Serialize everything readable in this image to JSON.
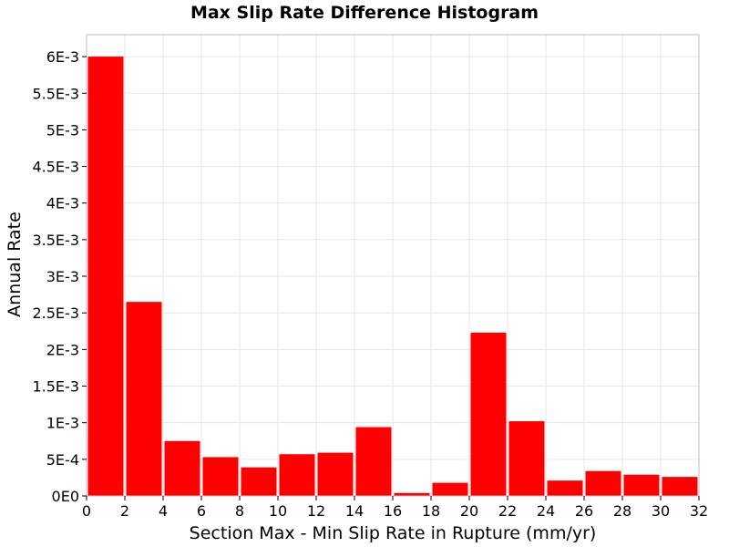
{
  "chart_data": {
    "type": "bar",
    "title": "Max Slip Rate Difference Histogram",
    "xlabel": "Section Max - Min Slip Rate in Rupture (mm/yr)",
    "ylabel": "Annual Rate",
    "xlim": [
      0,
      32
    ],
    "ylim": [
      0,
      0.0063
    ],
    "bin_width": 2,
    "bins": [
      {
        "x0": 0,
        "x1": 2,
        "value": 0.006
      },
      {
        "x0": 2,
        "x1": 4,
        "value": 0.00265
      },
      {
        "x0": 4,
        "x1": 6,
        "value": 0.00075
      },
      {
        "x0": 6,
        "x1": 8,
        "value": 0.00053
      },
      {
        "x0": 8,
        "x1": 10,
        "value": 0.00039
      },
      {
        "x0": 10,
        "x1": 12,
        "value": 0.00057
      },
      {
        "x0": 12,
        "x1": 14,
        "value": 0.00059
      },
      {
        "x0": 14,
        "x1": 16,
        "value": 0.00094
      },
      {
        "x0": 16,
        "x1": 18,
        "value": 4e-05
      },
      {
        "x0": 18,
        "x1": 20,
        "value": 0.00018
      },
      {
        "x0": 20,
        "x1": 22,
        "value": 0.00223
      },
      {
        "x0": 22,
        "x1": 24,
        "value": 0.00102
      },
      {
        "x0": 24,
        "x1": 26,
        "value": 0.00021
      },
      {
        "x0": 26,
        "x1": 28,
        "value": 0.00034
      },
      {
        "x0": 28,
        "x1": 30,
        "value": 0.00029
      },
      {
        "x0": 30,
        "x1": 32,
        "value": 0.00026
      }
    ],
    "x_ticks": [
      {
        "value": 0,
        "label": "0"
      },
      {
        "value": 2,
        "label": "2"
      },
      {
        "value": 4,
        "label": "4"
      },
      {
        "value": 6,
        "label": "6"
      },
      {
        "value": 8,
        "label": "8"
      },
      {
        "value": 10,
        "label": "10"
      },
      {
        "value": 12,
        "label": "12"
      },
      {
        "value": 14,
        "label": "14"
      },
      {
        "value": 16,
        "label": "16"
      },
      {
        "value": 18,
        "label": "18"
      },
      {
        "value": 20,
        "label": "20"
      },
      {
        "value": 22,
        "label": "22"
      },
      {
        "value": 24,
        "label": "24"
      },
      {
        "value": 26,
        "label": "26"
      },
      {
        "value": 28,
        "label": "28"
      },
      {
        "value": 30,
        "label": "30"
      },
      {
        "value": 32,
        "label": "32"
      }
    ],
    "y_ticks": [
      {
        "value": 0,
        "label": "0E0"
      },
      {
        "value": 0.0005,
        "label": "5E-4"
      },
      {
        "value": 0.001,
        "label": "1E-3"
      },
      {
        "value": 0.0015,
        "label": "1.5E-3"
      },
      {
        "value": 0.002,
        "label": "2E-3"
      },
      {
        "value": 0.0025,
        "label": "2.5E-3"
      },
      {
        "value": 0.003,
        "label": "3E-3"
      },
      {
        "value": 0.0035,
        "label": "3.5E-3"
      },
      {
        "value": 0.004,
        "label": "4E-3"
      },
      {
        "value": 0.0045,
        "label": "4.5E-3"
      },
      {
        "value": 0.005,
        "label": "5E-3"
      },
      {
        "value": 0.0055,
        "label": "5.5E-3"
      },
      {
        "value": 0.006,
        "label": "6E-3"
      }
    ],
    "grid": true,
    "legend": "none",
    "colors": {
      "bar": "#ff0000",
      "grid": "#e6e6e6",
      "frame": "#bdbdbd"
    }
  }
}
